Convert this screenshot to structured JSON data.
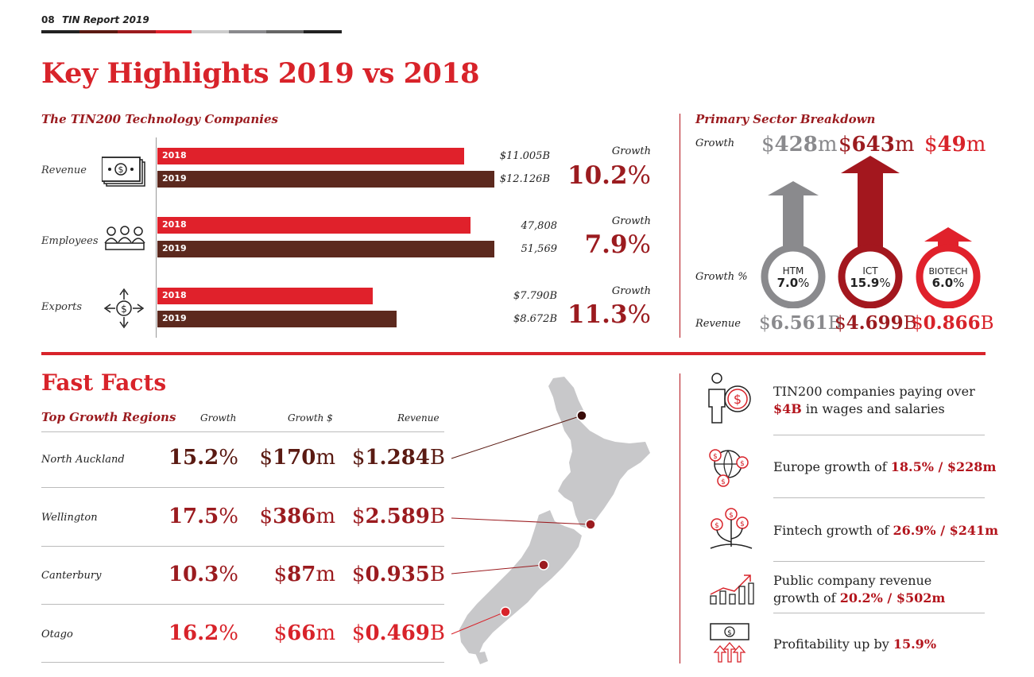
{
  "header": {
    "page_number": "08",
    "report_title": "TIN Report 2019"
  },
  "title": "Key Highlights 2019 vs 2018",
  "companies": {
    "subtitle": "The TIN200 Technology Companies",
    "rows": [
      {
        "label": "Revenue",
        "icon": "money-icon",
        "y2018_label": "2018",
        "y2019_label": "2019",
        "v2018": "$11.005B",
        "v2019": "$12.126B",
        "growth_label": "Growth",
        "growth_num": "10.2",
        "growth_unit": "%",
        "fill2018": 0.91,
        "fill2019": 1.0
      },
      {
        "label": "Employees",
        "icon": "people-icon",
        "y2018_label": "2018",
        "y2019_label": "2019",
        "v2018": "47,808",
        "v2019": "51,569",
        "growth_label": "Growth",
        "growth_num": "7.9",
        "growth_unit": "%",
        "fill2018": 0.93,
        "fill2019": 1.0
      },
      {
        "label": "Exports",
        "icon": "export-arrows-icon",
        "y2018_label": "2018",
        "y2019_label": "2019",
        "v2018": "$7.790B",
        "v2019": "$8.672B",
        "growth_label": "Growth",
        "growth_num": "11.3",
        "growth_unit": "%",
        "fill2018": 0.64,
        "fill2019": 0.71
      }
    ]
  },
  "sector": {
    "subtitle": "Primary Sector Breakdown",
    "growth_label": "Growth",
    "growth_pct_label": "Growth %",
    "revenue_label": "Revenue",
    "items": [
      {
        "name": "HTM",
        "growth_cur": "$",
        "growth_num": "428",
        "growth_unit": "m",
        "pct_num": "7.0",
        "pct_unit": "%",
        "rev_cur": "$",
        "rev_num": "6.561",
        "rev_unit": "B",
        "color": "#8a8a8d"
      },
      {
        "name": "ICT",
        "growth_cur": "$",
        "growth_num": "643",
        "growth_unit": "m",
        "pct_num": "15.9",
        "pct_unit": "%",
        "rev_cur": "$",
        "rev_num": "4.699",
        "rev_unit": "B",
        "color": "#a3171e"
      },
      {
        "name": "BIOTECH",
        "growth_cur": "$",
        "growth_num": "49",
        "growth_unit": "m",
        "pct_num": "6.0",
        "pct_unit": "%",
        "rev_cur": "$",
        "rev_num": "0.866",
        "rev_unit": "B",
        "color": "#e0212b"
      }
    ]
  },
  "fast_facts": {
    "title": "Fast Facts",
    "regions_title": "Top Growth Regions",
    "col_growth": "Growth",
    "col_growth_dollar": "Growth $",
    "col_revenue": "Revenue",
    "regions": [
      {
        "name": "North Auckland",
        "g_num": "15.2",
        "g_unit": "%",
        "gd_cur": "$",
        "gd_num": "170",
        "gd_unit": "m",
        "r_cur": "$",
        "r_num": "1.284",
        "r_unit": "B"
      },
      {
        "name": "Wellington",
        "g_num": "17.5",
        "g_unit": "%",
        "gd_cur": "$",
        "gd_num": "386",
        "gd_unit": "m",
        "r_cur": "$",
        "r_num": "2.589",
        "r_unit": "B"
      },
      {
        "name": "Canterbury",
        "g_num": "10.3",
        "g_unit": "%",
        "gd_cur": "$",
        "gd_num": "87",
        "gd_unit": "m",
        "r_cur": "$",
        "r_num": "0.935",
        "r_unit": "B"
      },
      {
        "name": "Otago",
        "g_num": "16.2",
        "g_unit": "%",
        "gd_cur": "$",
        "gd_num": "66",
        "gd_unit": "m",
        "r_cur": "$",
        "r_num": "0.469",
        "r_unit": "B"
      }
    ]
  },
  "facts": [
    {
      "icon": "person-money-icon",
      "pre": "TIN200 companies paying over ",
      "bold": "$4B",
      "post": " in wages and salaries"
    },
    {
      "icon": "globe-money-icon",
      "pre": "Europe growth of ",
      "bold": "18.5% / $228m",
      "post": ""
    },
    {
      "icon": "money-plant-icon",
      "pre": "Fintech growth of ",
      "bold": "26.9% / $241m",
      "post": ""
    },
    {
      "icon": "bar-growth-icon",
      "pre": "Public company revenue growth of ",
      "bold": "20.2% / $502m",
      "post": ""
    },
    {
      "icon": "money-arrows-up-icon",
      "pre": "Profitability up by ",
      "bold": "15.9%",
      "post": ""
    }
  ]
}
